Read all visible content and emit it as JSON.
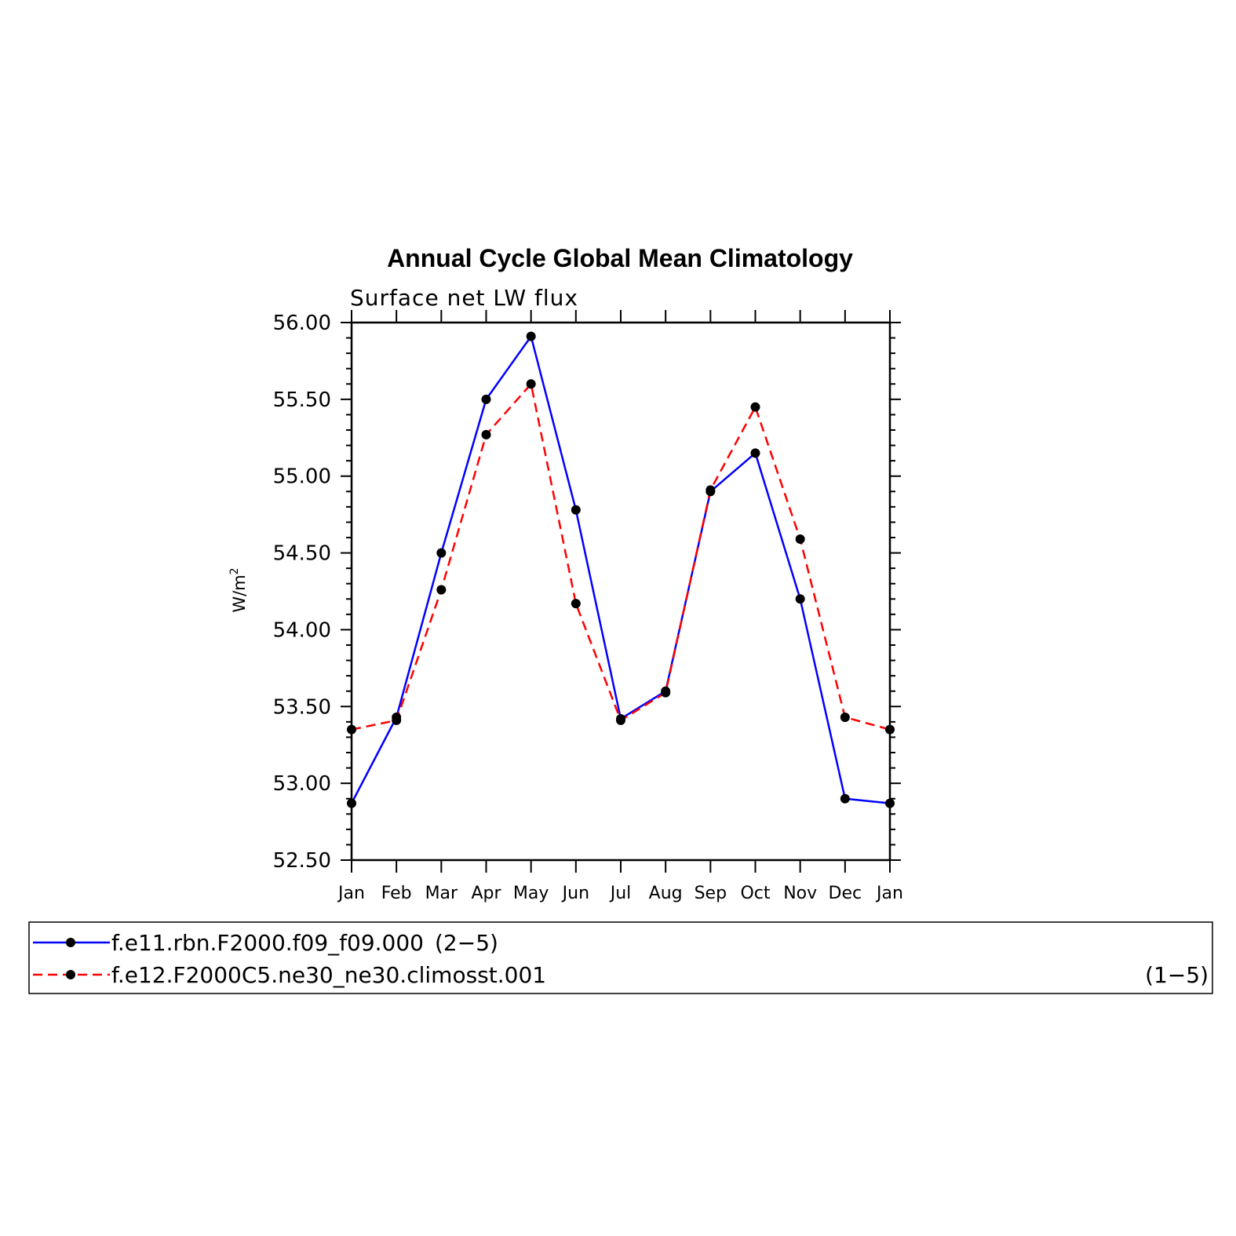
{
  "chart_data": {
    "type": "line",
    "title": "Annual Cycle Global Mean Climatology",
    "subtitle": "Surface net LW flux",
    "xlabel": "",
    "ylabel": "W/m",
    "ylabel_sup": "2",
    "ylim": [
      52.5,
      56.0
    ],
    "yticks": [
      "52.50",
      "53.00",
      "53.50",
      "54.00",
      "54.50",
      "55.00",
      "55.50",
      "56.00"
    ],
    "categories": [
      "Jan",
      "Feb",
      "Mar",
      "Apr",
      "May",
      "Jun",
      "Jul",
      "Aug",
      "Sep",
      "Oct",
      "Nov",
      "Dec",
      "Jan"
    ],
    "grid": false,
    "legend_position": "bottom",
    "series": [
      {
        "name": "f.e11.rbn.F2000.f09_f09.000",
        "legend_suffix": "(2−5)",
        "color": "#0000ff",
        "dash": "solid",
        "values": [
          52.87,
          53.43,
          54.5,
          55.5,
          55.91,
          54.78,
          53.42,
          53.6,
          54.9,
          55.15,
          54.2,
          52.9,
          52.87
        ]
      },
      {
        "name": "f.e12.F2000C5.ne30_ne30.climosst.001",
        "legend_suffix": "(1−5)",
        "color": "#ff0000",
        "dash": "dashed",
        "values": [
          53.35,
          53.41,
          54.26,
          55.27,
          55.6,
          54.17,
          53.41,
          53.59,
          54.91,
          55.45,
          54.59,
          53.43,
          53.35
        ]
      }
    ],
    "marker_color": "#000000"
  }
}
